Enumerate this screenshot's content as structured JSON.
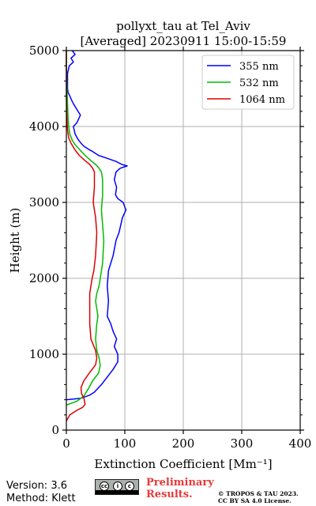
{
  "chart_data": {
    "type": "line",
    "title_line1": "pollyxt_tau at Tel_Aviv",
    "title_line2": "[Averaged] 20230911 15:00-15:59",
    "xlabel": "Extinction Coefficient [Mm⁻¹]",
    "ylabel": "Height (m)",
    "xlim": [
      0,
      400
    ],
    "ylim": [
      0,
      5000
    ],
    "xticks": [
      0,
      100,
      200,
      300,
      400
    ],
    "yticks": [
      0,
      1000,
      2000,
      3000,
      4000,
      5000
    ],
    "grid": true,
    "legend_position": "top-right",
    "series": [
      {
        "name": "355 nm",
        "color": "#0000ff",
        "points": [
          [
            0,
            400
          ],
          [
            25,
            420
          ],
          [
            40,
            460
          ],
          [
            48,
            500
          ],
          [
            60,
            600
          ],
          [
            70,
            700
          ],
          [
            80,
            800
          ],
          [
            88,
            900
          ],
          [
            88,
            1000
          ],
          [
            85,
            1050
          ],
          [
            82,
            1100
          ],
          [
            86,
            1200
          ],
          [
            80,
            1300
          ],
          [
            76,
            1400
          ],
          [
            70,
            1500
          ],
          [
            72,
            1700
          ],
          [
            70,
            1900
          ],
          [
            72,
            2100
          ],
          [
            80,
            2300
          ],
          [
            85,
            2500
          ],
          [
            90,
            2600
          ],
          [
            96,
            2800
          ],
          [
            102,
            2900
          ],
          [
            97,
            3000
          ],
          [
            88,
            3050
          ],
          [
            84,
            3100
          ],
          [
            86,
            3200
          ],
          [
            82,
            3300
          ],
          [
            85,
            3400
          ],
          [
            92,
            3450
          ],
          [
            104,
            3480
          ],
          [
            95,
            3500
          ],
          [
            85,
            3540
          ],
          [
            70,
            3580
          ],
          [
            55,
            3620
          ],
          [
            45,
            3670
          ],
          [
            38,
            3700
          ],
          [
            30,
            3740
          ],
          [
            25,
            3780
          ],
          [
            20,
            3830
          ],
          [
            15,
            3900
          ],
          [
            12,
            4000
          ],
          [
            18,
            4050
          ],
          [
            24,
            4150
          ],
          [
            16,
            4250
          ],
          [
            12,
            4300
          ],
          [
            10,
            4330
          ],
          [
            6,
            4400
          ],
          [
            3,
            4450
          ],
          [
            2,
            4500
          ],
          [
            2,
            4700
          ],
          [
            5,
            4800
          ],
          [
            12,
            4850
          ],
          [
            8,
            4900
          ],
          [
            15,
            4950
          ],
          [
            10,
            5000
          ]
        ]
      },
      {
        "name": "532 nm",
        "color": "#00bb00",
        "points": [
          [
            0,
            330
          ],
          [
            18,
            380
          ],
          [
            30,
            450
          ],
          [
            38,
            550
          ],
          [
            45,
            650
          ],
          [
            55,
            750
          ],
          [
            58,
            850
          ],
          [
            56,
            950
          ],
          [
            52,
            1050
          ],
          [
            50,
            1200
          ],
          [
            52,
            1400
          ],
          [
            54,
            1500
          ],
          [
            52,
            1600
          ],
          [
            50,
            1700
          ],
          [
            52,
            1800
          ],
          [
            56,
            1900
          ],
          [
            58,
            2000
          ],
          [
            62,
            2200
          ],
          [
            64,
            2500
          ],
          [
            62,
            2700
          ],
          [
            60,
            2900
          ],
          [
            62,
            3100
          ],
          [
            62,
            3300
          ],
          [
            60,
            3400
          ],
          [
            56,
            3450
          ],
          [
            50,
            3500
          ],
          [
            42,
            3550
          ],
          [
            32,
            3620
          ],
          [
            22,
            3700
          ],
          [
            15,
            3760
          ],
          [
            10,
            3820
          ],
          [
            6,
            3900
          ],
          [
            4,
            4000
          ],
          [
            3,
            4100
          ],
          [
            2,
            4300
          ],
          [
            1,
            4500
          ],
          [
            0,
            4800
          ],
          [
            0,
            5000
          ]
        ]
      },
      {
        "name": "1064 nm",
        "color": "#dd0000",
        "points": [
          [
            0,
            120
          ],
          [
            6,
            200
          ],
          [
            18,
            260
          ],
          [
            28,
            300
          ],
          [
            32,
            340
          ],
          [
            30,
            420
          ],
          [
            26,
            480
          ],
          [
            25,
            560
          ],
          [
            30,
            650
          ],
          [
            40,
            760
          ],
          [
            50,
            860
          ],
          [
            52,
            950
          ],
          [
            50,
            1050
          ],
          [
            42,
            1200
          ],
          [
            40,
            1400
          ],
          [
            40,
            1600
          ],
          [
            40,
            1800
          ],
          [
            44,
            2000
          ],
          [
            47,
            2100
          ],
          [
            50,
            2300
          ],
          [
            52,
            2600
          ],
          [
            50,
            2800
          ],
          [
            48,
            2900
          ],
          [
            46,
            3000
          ],
          [
            48,
            3200
          ],
          [
            48,
            3400
          ],
          [
            45,
            3450
          ],
          [
            40,
            3500
          ],
          [
            32,
            3550
          ],
          [
            22,
            3620
          ],
          [
            14,
            3700
          ],
          [
            8,
            3780
          ],
          [
            4,
            3850
          ],
          [
            2,
            3950
          ],
          [
            1,
            4100
          ],
          [
            0,
            4400
          ],
          [
            0,
            5000
          ]
        ]
      }
    ]
  },
  "footer": {
    "version": "Version: 3.6",
    "method": "Method: Klett",
    "cc_label": "BY SA",
    "preliminary_line1": "Preliminary",
    "preliminary_line2": "Results.",
    "copyright_line1": "© TROPOS & TAU 2023.",
    "copyright_line2": "CC BY SA 4.0 License."
  }
}
